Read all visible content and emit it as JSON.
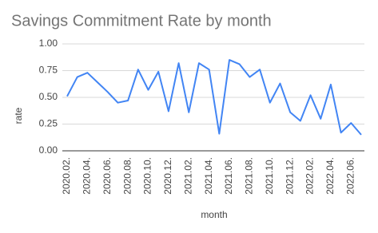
{
  "chart_data": {
    "type": "line",
    "title": "Savings Commitment Rate by month",
    "x_label": "month",
    "y_label": "rate",
    "categories": [
      "2020.02.",
      null,
      "2020.04.",
      null,
      "2020.06.",
      null,
      "2020.08.",
      null,
      "2020.10.",
      null,
      "2020.12.",
      null,
      "2021.02.",
      null,
      "2021.04.",
      null,
      "2021.06.",
      null,
      "2021.08.",
      null,
      "2021.10.",
      null,
      "2021.12.",
      null,
      "2022.02.",
      null,
      "2022.04.",
      null,
      "2022.06.",
      null
    ],
    "values": [
      0.51,
      0.69,
      0.73,
      0.64,
      0.55,
      0.45,
      0.47,
      0.76,
      0.57,
      0.74,
      0.37,
      0.82,
      0.36,
      0.82,
      0.76,
      0.16,
      0.85,
      0.81,
      0.69,
      0.76,
      0.45,
      0.63,
      0.36,
      0.28,
      0.52,
      0.3,
      0.62,
      0.17,
      0.26,
      0.15
    ],
    "color": "#4285f4",
    "ylim": [
      0,
      1
    ],
    "yticks": [
      {
        "value": 0,
        "label": "0.00"
      },
      {
        "value": 0.25,
        "label": "0.25"
      },
      {
        "value": 0.5,
        "label": "0.50"
      },
      {
        "value": 0.75,
        "label": "0.75"
      },
      {
        "value": 1,
        "label": "1.00"
      }
    ],
    "grid": true
  }
}
